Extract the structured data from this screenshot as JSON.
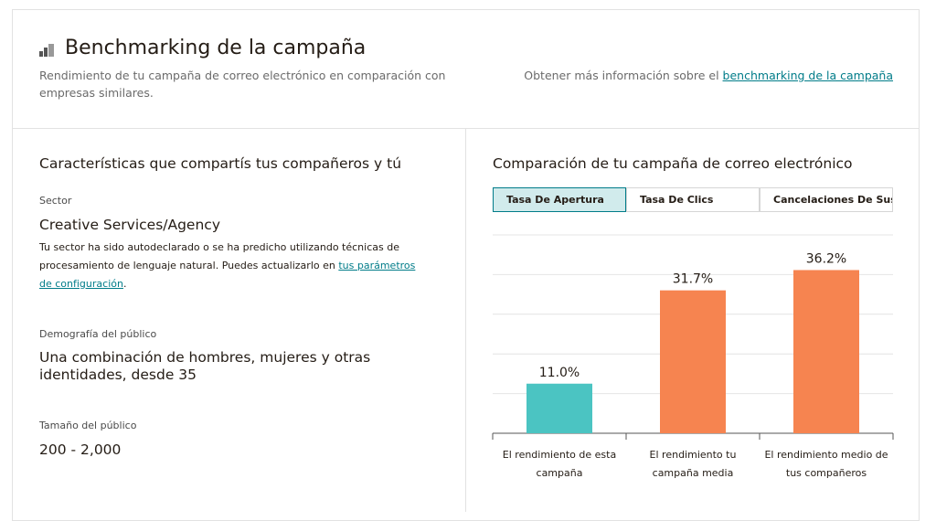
{
  "header": {
    "title": "Benchmarking de la campaña",
    "subtitle": "Rendimiento de tu campaña de correo electrónico en comparación con empresas similares.",
    "more_info": {
      "text": "Obtener más información sobre el",
      "link": "benchmarking de la campaña"
    }
  },
  "characteristics": {
    "title": "Características que compartís tus compañeros y tú",
    "sector": {
      "label": "Sector",
      "value": "Creative Services/Agency",
      "description": {
        "text": "Tu sector ha sido autodeclarado o se ha predicho utilizando técnicas de procesamiento de lenguaje natural. Puedes actualizarlo en",
        "link": "tus parámetros de configuración",
        "end": "."
      }
    },
    "demographics": {
      "label": "Demografía del público",
      "value": "Una combinación de hombres, mujeres y otras identidades, desde 35"
    },
    "audience_size": {
      "label": "Tamaño del público",
      "value": "200 - 2,000"
    }
  },
  "comparison": {
    "title": "Comparación de tu campaña de correo electrónico",
    "tabs": [
      "Tasa De Apertura",
      "Tasa De Clics",
      "Cancelaciones De Suscri"
    ],
    "chart_data": {
      "type": "bar",
      "categories": [
        "El rendimiento de esta campaña",
        "El rendimiento tu campaña media",
        "El rendimiento medio de tus compañeros"
      ],
      "values": [
        11.0,
        31.7,
        36.2
      ],
      "value_labels": [
        "11.0%",
        "31.7%",
        "36.2%"
      ],
      "colors": [
        "#4bc4c2",
        "#f68450",
        "#f68450"
      ],
      "ylim": [
        0,
        44
      ],
      "yticks": [
        0,
        8.8,
        17.6,
        26.4,
        35.2,
        44
      ],
      "grid": true
    }
  }
}
